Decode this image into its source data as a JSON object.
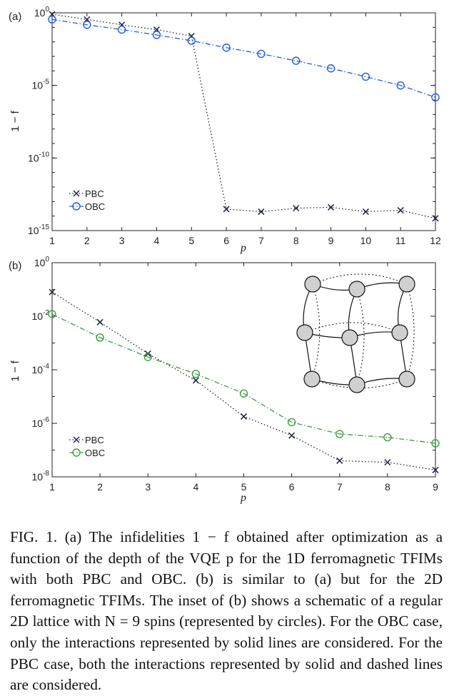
{
  "chart_data": [
    {
      "panel_label": "(a)",
      "type": "line",
      "xlabel": "p",
      "ylabel": "1 − f",
      "yscale": "log",
      "x": [
        1,
        2,
        3,
        4,
        5,
        6,
        7,
        8,
        9,
        10,
        11,
        12
      ],
      "xlim": [
        1,
        12
      ],
      "ylim_exp": [
        -15,
        0
      ],
      "xticks": [
        "1",
        "2",
        "3",
        "4",
        "5",
        "6",
        "7",
        "8",
        "9",
        "10",
        "11",
        "12"
      ],
      "yticks": [
        {
          "base": "10",
          "exp": "0"
        },
        {
          "base": "10",
          "exp": "-5"
        },
        {
          "base": "10",
          "exp": "-10"
        },
        {
          "base": "10",
          "exp": "-15"
        }
      ],
      "legend": "bottom-left",
      "series": [
        {
          "name": "PBC",
          "marker": "x",
          "color": "#1c2340",
          "style": "dotted",
          "values": [
            0.8,
            0.35,
            0.15,
            0.07,
            0.025,
            3e-14,
            2e-14,
            3.5e-14,
            4e-14,
            2e-14,
            2.5e-14,
            7e-15
          ]
        },
        {
          "name": "OBC",
          "marker": "o",
          "color": "#1f5fd6",
          "style": "dashdot",
          "values": [
            0.35,
            0.15,
            0.07,
            0.03,
            0.012,
            0.004,
            0.0015,
            0.0005,
            0.00015,
            4e-05,
            1e-05,
            1.5e-06
          ]
        }
      ]
    },
    {
      "panel_label": "(b)",
      "type": "line",
      "xlabel": "p",
      "ylabel": "1 − f",
      "yscale": "log",
      "x": [
        1,
        2,
        3,
        4,
        5,
        6,
        7,
        8,
        9
      ],
      "xlim": [
        1,
        9
      ],
      "ylim_exp": [
        -8,
        0
      ],
      "xticks": [
        "1",
        "2",
        "3",
        "4",
        "5",
        "6",
        "7",
        "8",
        "9"
      ],
      "yticks": [
        {
          "base": "10",
          "exp": "0"
        },
        {
          "base": "10",
          "exp": "-2"
        },
        {
          "base": "10",
          "exp": "-4"
        },
        {
          "base": "10",
          "exp": "-6"
        },
        {
          "base": "10",
          "exp": "-8"
        }
      ],
      "legend": "bottom-left",
      "series": [
        {
          "name": "PBC",
          "marker": "x",
          "color": "#1c2340",
          "style": "dotted",
          "values": [
            0.08,
            0.006,
            0.0004,
            4e-05,
            1.8e-06,
            3.5e-07,
            4e-08,
            3.5e-08,
            1.8e-08
          ]
        },
        {
          "name": "OBC",
          "marker": "o",
          "color": "#3a9e3a",
          "style": "dashdot",
          "values": [
            0.012,
            0.0016,
            0.0003,
            7e-05,
            1.3e-05,
            1.1e-06,
            4e-07,
            3e-07,
            1.8e-07
          ]
        }
      ]
    }
  ],
  "caption": "FIG. 1. (a) The infidelities 1 − f obtained after optimization as a function of the depth of the VQE p for the 1D ferromagnetic TFIMs with both PBC and OBC. (b) is similar to (a) but for the 2D ferromagnetic TFIMs. The inset of (b) shows a schematic of a regular 2D lattice with N = 9 spins (represented by circles). For the OBC case, only the interactions represented by solid lines are considered. For the PBC case, both the interactions represented by solid and dashed lines are considered."
}
